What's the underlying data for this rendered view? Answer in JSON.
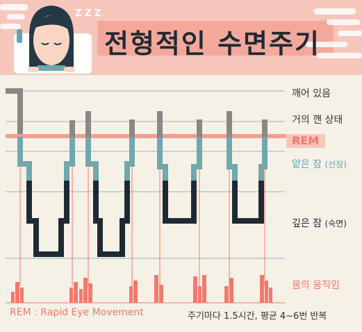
{
  "title": "전형적인 수면주기",
  "stages": {
    "awake": "깨어 있음",
    "near_awake": "거의 깬 상태",
    "rem": "REM",
    "light_sleep": "얕은 잠",
    "light_sleep_sub": "(선잠)",
    "deep_sleep": "깊은 잠",
    "deep_sleep_sub": "(숙면)",
    "movement": "몸의 움직임"
  },
  "footer": {
    "rem_note": "REM : Rapid Eye Movement",
    "cycle_note": "주기마다 1.5시간, 평균 4~6번 반복"
  },
  "decor": {
    "zzz": "Z Z Z"
  },
  "colors": {
    "header_bg": "#f7c6bb",
    "background": "#f6f1e7",
    "dark": "#1e2a33",
    "teal": "#6fa8ad",
    "gray": "#8c8784",
    "rem_pink": "#f2796b",
    "grid": "#8fb9bd"
  }
}
